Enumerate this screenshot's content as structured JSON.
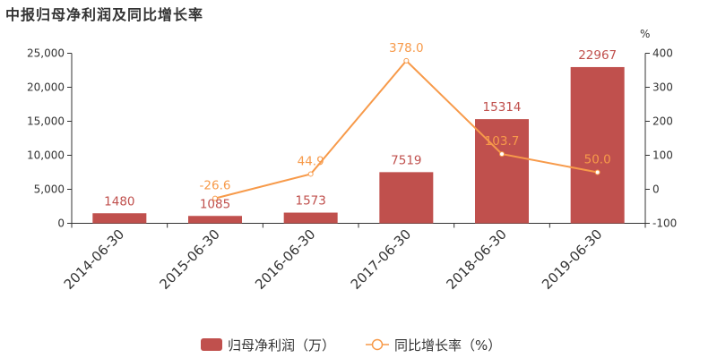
{
  "chart_data": {
    "type": "bar",
    "title": "中报归母净利润及同比增长率",
    "categories": [
      "2014-06-30",
      "2015-06-30",
      "2016-06-30",
      "2017-06-30",
      "2018-06-30",
      "2019-06-30"
    ],
    "series": [
      {
        "name": "归母净利润（万）",
        "type": "bar",
        "axis": "left",
        "color": "#c0504d",
        "values": [
          1480,
          1085,
          1573,
          7519,
          15314,
          22967
        ],
        "labels": [
          "1480",
          "1085",
          "1573",
          "7519",
          "15314",
          "22967"
        ]
      },
      {
        "name": "同比增长率（%）",
        "type": "line",
        "axis": "right",
        "color": "#f79a4a",
        "values": [
          null,
          -26.6,
          44.9,
          378.0,
          103.7,
          50.0
        ],
        "labels": [
          "",
          "-26.6",
          "44.9",
          "378.0",
          "103.7",
          "50.0"
        ]
      }
    ],
    "y_left": {
      "ylim": [
        0,
        25000
      ],
      "ticks": [
        0,
        5000,
        10000,
        15000,
        20000,
        25000
      ],
      "tick_labels": [
        "0",
        "5,000",
        "10,000",
        "15,000",
        "20,000",
        "25,000"
      ]
    },
    "y_right": {
      "unit": "%",
      "ylim": [
        -100,
        400
      ],
      "ticks": [
        -100,
        0,
        100,
        200,
        300,
        400
      ],
      "tick_labels": [
        "-100",
        "0",
        "100",
        "200",
        "300",
        "400"
      ]
    },
    "xlabel": "",
    "ylabel": "",
    "grid": false,
    "legend_position": "bottom-center"
  }
}
